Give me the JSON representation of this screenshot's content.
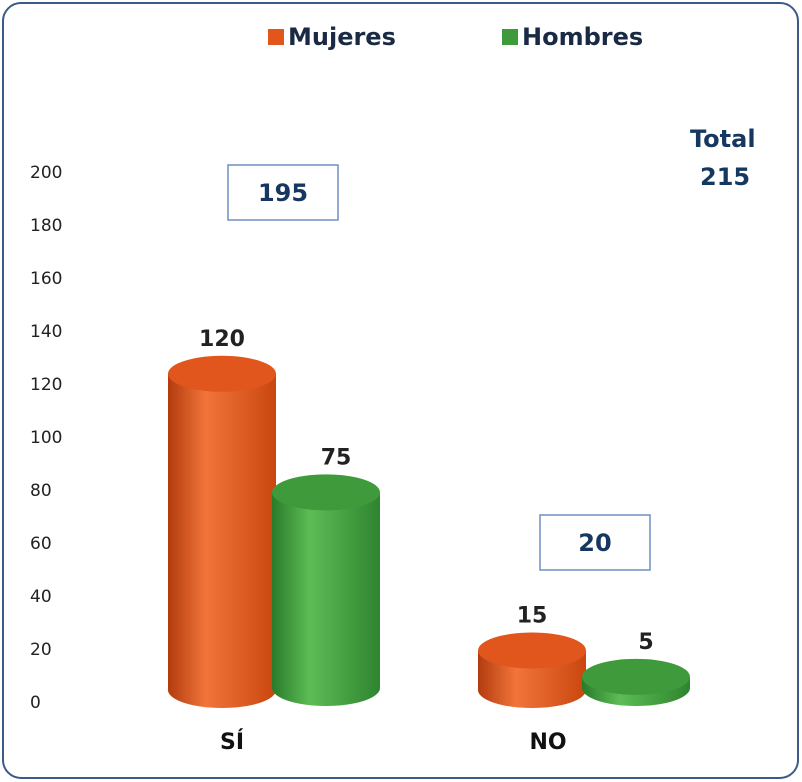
{
  "chart_data": {
    "type": "bar",
    "categories": [
      "SÍ",
      "NO"
    ],
    "series": [
      {
        "name": "Mujeres",
        "color": "#e0561c",
        "values": [
          120,
          15
        ]
      },
      {
        "name": "Hombres",
        "color": "#3e9a3a",
        "values": [
          75,
          5
        ]
      }
    ],
    "totals": [
      195,
      20
    ],
    "total_label": "Total",
    "total_value": 215,
    "ylim": [
      0,
      200
    ],
    "yticks": [
      0,
      20,
      40,
      60,
      80,
      100,
      120,
      140,
      160,
      180,
      200
    ],
    "legend": "top"
  }
}
